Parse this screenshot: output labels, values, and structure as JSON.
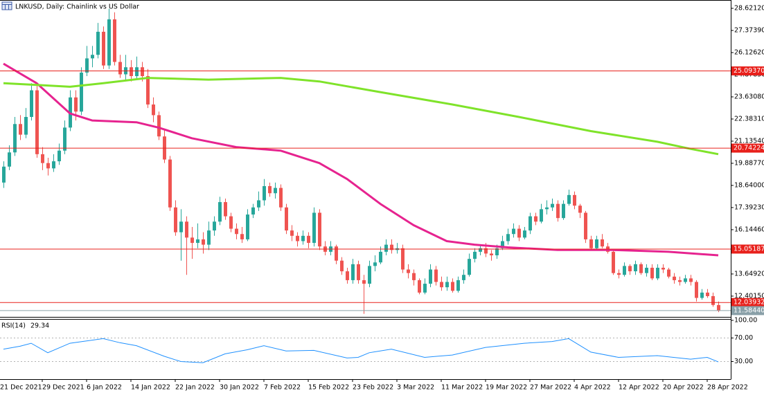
{
  "chart_data": [
    {
      "type": "candlestick",
      "title": "LNKUSD, Daily:  Chainlink vs US Dollar",
      "up_color": "#26a69a",
      "down_color": "#ef5350",
      "open": [
        18.8,
        19.7,
        20.5,
        22.1,
        21.5,
        22.5,
        24.0,
        20.4,
        19.9,
        19.6,
        20.0,
        20.6,
        21.9,
        23.6,
        22.8,
        25.0,
        25.8,
        26.0,
        27.3,
        25.4,
        28.0,
        25.6,
        24.9,
        25.3,
        24.8,
        25.3,
        24.8,
        23.2,
        22.6,
        21.4,
        20.1,
        17.4,
        16.0,
        16.6,
        15.7,
        15.4,
        15.6,
        15.3,
        16.1,
        16.6,
        17.7,
        16.9,
        16.2,
        15.9,
        15.6,
        17.0,
        17.4,
        17.8,
        18.6,
        18.2,
        18.5,
        17.4,
        16.1,
        15.8,
        15.5,
        15.8,
        15.4,
        17.1,
        15.2,
        14.9,
        15.2,
        14.4,
        13.8,
        13.3,
        14.2,
        13.3,
        13.1,
        14.1,
        14.3,
        14.9,
        15.3,
        15.0,
        15.1,
        13.9,
        13.7,
        13.3,
        12.6,
        13.1,
        13.9,
        13.2,
        12.9,
        13.2,
        12.7,
        13.3,
        13.6,
        14.5,
        14.9,
        15.1,
        14.8,
        14.7,
        15.1,
        15.5,
        15.9,
        16.2,
        15.7,
        16.1,
        16.9,
        16.6,
        17.3,
        17.4,
        17.6,
        16.8,
        17.6,
        18.1,
        17.5,
        17.1,
        15.6,
        15.1,
        15.6,
        15.2,
        14.9,
        13.7,
        13.6,
        14.1,
        13.8,
        14.2,
        13.7,
        14.0,
        13.4,
        14.0,
        13.9,
        13.5,
        13.3,
        13.2,
        13.4,
        13.2,
        12.3,
        12.6,
        12.4,
        11.9
      ],
      "high": [
        20.0,
        20.9,
        22.5,
        22.6,
        23.0,
        24.4,
        24.4,
        20.8,
        20.2,
        20.4,
        21.0,
        22.3,
        24.0,
        24.0,
        25.3,
        26.5,
        26.5,
        27.8,
        27.6,
        28.6,
        28.4,
        26.0,
        26.0,
        25.7,
        25.9,
        25.6,
        25.2,
        23.6,
        22.8,
        21.8,
        20.3,
        17.8,
        17.3,
        16.9,
        16.3,
        16.5,
        16.0,
        16.6,
        16.9,
        18.0,
        17.9,
        17.1,
        16.5,
        16.3,
        17.3,
        17.6,
        18.3,
        19.0,
        18.8,
        18.8,
        18.7,
        17.6,
        16.4,
        16.0,
        16.1,
        16.0,
        17.4,
        17.3,
        15.5,
        15.5,
        15.3,
        14.6,
        14.0,
        14.5,
        14.4,
        13.6,
        14.4,
        14.7,
        15.2,
        15.6,
        15.6,
        15.4,
        15.3,
        14.2,
        13.9,
        13.4,
        13.4,
        14.2,
        14.1,
        13.5,
        13.5,
        13.4,
        13.5,
        13.9,
        14.8,
        15.1,
        15.3,
        15.4,
        15.0,
        15.3,
        15.8,
        16.2,
        16.5,
        16.4,
        16.3,
        17.1,
        17.1,
        17.6,
        17.8,
        17.9,
        17.8,
        17.8,
        18.4,
        18.3,
        17.6,
        17.2,
        15.8,
        15.8,
        15.9,
        15.4,
        15.0,
        13.9,
        14.3,
        14.2,
        14.4,
        14.3,
        14.2,
        14.2,
        14.2,
        14.2,
        14.0,
        13.7,
        13.5,
        13.6,
        13.6,
        13.3,
        12.8,
        12.8,
        12.6,
        12.1
      ],
      "low": [
        18.5,
        19.5,
        20.3,
        21.2,
        21.3,
        22.3,
        20.2,
        19.5,
        19.2,
        19.4,
        19.8,
        20.4,
        21.7,
        22.3,
        22.6,
        24.8,
        25.3,
        25.8,
        25.2,
        25.2,
        25.4,
        24.7,
        24.6,
        24.5,
        24.6,
        24.5,
        23.0,
        22.2,
        21.2,
        19.9,
        17.2,
        15.8,
        14.4,
        13.6,
        14.5,
        15.1,
        14.8,
        15.0,
        15.8,
        16.4,
        16.7,
        16.0,
        15.6,
        15.4,
        15.5,
        16.8,
        17.2,
        17.5,
        18.0,
        17.9,
        17.2,
        15.9,
        15.5,
        15.2,
        15.3,
        15.1,
        15.2,
        15.0,
        14.7,
        14.7,
        14.2,
        13.6,
        13.1,
        13.1,
        13.1,
        11.4,
        12.9,
        13.8,
        14.2,
        14.7,
        14.8,
        14.8,
        13.7,
        13.4,
        13.0,
        12.5,
        12.5,
        12.9,
        13.0,
        12.7,
        12.7,
        12.6,
        12.6,
        13.1,
        13.5,
        14.3,
        14.7,
        14.6,
        14.4,
        14.5,
        15.0,
        15.3,
        15.7,
        15.5,
        15.6,
        15.9,
        16.4,
        16.5,
        17.0,
        17.2,
        16.6,
        16.7,
        17.5,
        17.3,
        16.8,
        15.4,
        15.0,
        15.0,
        15.1,
        14.8,
        13.6,
        13.4,
        13.5,
        13.6,
        13.6,
        13.6,
        13.5,
        13.3,
        13.3,
        13.7,
        13.4,
        13.1,
        13.0,
        13.1,
        13.0,
        12.1,
        12.2,
        12.3,
        11.8,
        11.5
      ],
      "close": [
        19.7,
        20.5,
        22.1,
        21.5,
        22.5,
        24.0,
        20.4,
        19.9,
        19.6,
        20.0,
        20.6,
        21.9,
        23.6,
        22.8,
        25.0,
        25.8,
        26.0,
        27.3,
        25.4,
        28.0,
        25.6,
        24.9,
        25.3,
        24.8,
        25.3,
        24.8,
        23.2,
        22.6,
        21.4,
        20.1,
        17.4,
        16.0,
        16.6,
        15.7,
        15.4,
        15.6,
        15.3,
        16.1,
        16.6,
        17.7,
        16.9,
        16.2,
        15.9,
        15.6,
        17.0,
        17.4,
        17.8,
        18.6,
        18.2,
        18.5,
        17.4,
        16.1,
        15.8,
        15.5,
        15.8,
        15.4,
        17.1,
        15.2,
        14.9,
        15.2,
        14.4,
        13.8,
        13.3,
        14.2,
        13.3,
        13.1,
        14.1,
        14.3,
        14.9,
        15.3,
        15.0,
        15.1,
        13.9,
        13.7,
        13.3,
        12.6,
        13.1,
        13.9,
        13.2,
        12.9,
        13.2,
        12.7,
        13.3,
        13.6,
        14.5,
        14.9,
        15.1,
        14.8,
        14.7,
        15.1,
        15.5,
        15.9,
        16.2,
        15.7,
        16.1,
        16.9,
        16.6,
        17.3,
        17.4,
        17.6,
        16.8,
        17.6,
        18.1,
        17.5,
        17.1,
        15.6,
        15.1,
        15.6,
        15.2,
        14.9,
        13.7,
        13.6,
        14.1,
        13.8,
        14.2,
        13.7,
        14.0,
        13.4,
        14.0,
        13.9,
        13.5,
        13.3,
        13.2,
        13.4,
        13.2,
        12.3,
        12.6,
        12.4,
        11.9,
        11.5844
      ],
      "overlays": [
        {
          "color": "#e6238f",
          "x": [
            0,
            6,
            12,
            16,
            24,
            28,
            34,
            42,
            50,
            57,
            62,
            68,
            74,
            80,
            85,
            91,
            100,
            110,
            120,
            129
          ],
          "values": [
            25.5,
            24.4,
            22.7,
            22.3,
            22.2,
            21.9,
            21.3,
            20.8,
            20.6,
            19.9,
            19.0,
            17.6,
            16.4,
            15.5,
            15.3,
            15.15,
            15.0,
            15.0,
            14.9,
            14.7
          ]
        },
        {
          "color": "#7fe32a",
          "x": [
            0,
            6,
            12,
            18,
            26,
            37,
            50,
            57,
            68,
            81,
            93,
            106,
            118,
            124,
            129
          ],
          "values": [
            24.4,
            24.3,
            24.2,
            24.4,
            24.7,
            24.6,
            24.7,
            24.5,
            23.9,
            23.2,
            22.5,
            21.7,
            21.1,
            20.7,
            20.4
          ]
        }
      ],
      "levels": [
        {
          "value": 25.0937,
          "label": "25.09370",
          "color": "#e8201b"
        },
        {
          "value": 20.74224,
          "label": "20.74224",
          "color": "#e8201b"
        },
        {
          "value": 15.05187,
          "label": "15.05187",
          "color": "#e8201b"
        },
        {
          "value": 12.03932,
          "label": "12.03932",
          "color": "#e8201b"
        }
      ],
      "bid": {
        "value": 11.5844,
        "label": "11.58440",
        "color": "#8aa0a8"
      },
      "xlim": [
        -0.625,
        131.25
      ],
      "ylim": [
        11.23,
        29.09
      ],
      "yticks": [
        {
          "value": 28.6212,
          "label": "28.62120"
        },
        {
          "value": 27.3739,
          "label": "27.37390"
        },
        {
          "value": 26.1262,
          "label": "26.12620"
        },
        {
          "value": 24.8785,
          "label": "24.87850"
        },
        {
          "value": 23.6308,
          "label": "23.63080"
        },
        {
          "value": 22.3831,
          "label": "22.38310"
        },
        {
          "value": 21.1354,
          "label": "21.13540"
        },
        {
          "value": 19.8877,
          "label": "19.88770"
        },
        {
          "value": 18.64,
          "label": "18.64000"
        },
        {
          "value": 17.3923,
          "label": "17.39230"
        },
        {
          "value": 16.1446,
          "label": "16.14460"
        },
        {
          "value": 14.8969,
          "label": "14.89690"
        },
        {
          "value": 13.6492,
          "label": "13.64920"
        },
        {
          "value": 12.4015,
          "label": "12.40150"
        }
      ]
    },
    {
      "type": "line",
      "label": "RSI(14)",
      "color": "#1e90ff",
      "x": [
        0,
        3,
        5,
        8,
        12,
        15,
        18,
        21,
        24,
        29,
        32,
        36,
        40,
        44,
        47,
        51,
        56,
        62,
        64,
        66,
        70,
        76,
        81,
        87,
        94,
        99,
        102,
        106,
        111,
        118,
        124,
        127,
        129
      ],
      "values": [
        51,
        56,
        61,
        45,
        61,
        65,
        69,
        62,
        57,
        39,
        30,
        28,
        43,
        50,
        57,
        48,
        49,
        36,
        37,
        45,
        51,
        37,
        41,
        54,
        61,
        64,
        69,
        46,
        37,
        40,
        34,
        37,
        29.34
      ],
      "xlim": [
        -0.625,
        131.25
      ],
      "ylim": [
        0,
        100
      ],
      "yticks": [
        {
          "value": 100,
          "label": "100.00"
        },
        {
          "value": 70,
          "label": "70.00"
        },
        {
          "value": 30,
          "label": "30.00"
        }
      ],
      "grid": true,
      "xticks": [
        {
          "value": -1,
          "label": "21 Dec 2021"
        },
        {
          "value": 7,
          "label": "29 Dec 2021"
        },
        {
          "value": 15,
          "label": "6 Jan 2022"
        },
        {
          "value": 23,
          "label": "14 Jan 2022"
        },
        {
          "value": 31,
          "label": "22 Jan 2022"
        },
        {
          "value": 39,
          "label": "30 Jan 2022"
        },
        {
          "value": 47,
          "label": "7 Feb 2022"
        },
        {
          "value": 55,
          "label": "15 Feb 2022"
        },
        {
          "value": 63,
          "label": "23 Feb 2022"
        },
        {
          "value": 71,
          "label": "3 Mar 2022"
        },
        {
          "value": 79,
          "label": "11 Mar 2022"
        },
        {
          "value": 87,
          "label": "19 Mar 2022"
        },
        {
          "value": 95,
          "label": "27 Mar 2022"
        },
        {
          "value": 103,
          "label": "4 Apr 2022"
        },
        {
          "value": 111,
          "label": "12 Apr 2022"
        },
        {
          "value": 119,
          "label": "20 Apr 2022"
        },
        {
          "value": 127,
          "label": "28 Apr 2022"
        }
      ]
    }
  ]
}
